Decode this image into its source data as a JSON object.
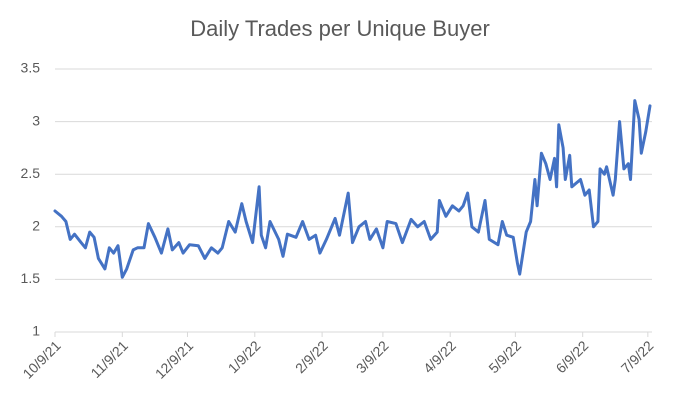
{
  "chart_data": {
    "type": "line",
    "title": "Daily Trades per Unique Buyer",
    "color": "#4472c4",
    "x": [
      "10/9/21",
      "10/12/21",
      "10/14/21",
      "10/16/21",
      "10/18/21",
      "10/21/21",
      "10/23/21",
      "10/25/21",
      "10/27/21",
      "10/29/21",
      "11/1/21",
      "11/3/21",
      "11/5/21",
      "11/7/21",
      "11/9/21",
      "11/11/21",
      "11/14/21",
      "11/16/21",
      "11/19/21",
      "11/21/21",
      "11/24/21",
      "11/27/21",
      "11/30/21",
      "12/2/21",
      "12/5/21",
      "12/7/21",
      "12/10/21",
      "12/14/21",
      "12/17/21",
      "12/20/21",
      "12/23/21",
      "12/25/21",
      "12/28/21",
      "12/31/21",
      "1/3/22",
      "1/5/22",
      "1/8/22",
      "1/11/22",
      "1/12/22",
      "1/14/22",
      "1/16/22",
      "1/20/22",
      "1/22/22",
      "1/24/22",
      "1/28/22",
      "1/31/22",
      "2/3/22",
      "2/6/22",
      "2/8/22",
      "2/11/22",
      "2/15/22",
      "2/17/22",
      "2/21/22",
      "2/23/22",
      "2/26/22",
      "3/1/22",
      "3/3/22",
      "3/6/22",
      "3/9/22",
      "3/11/22",
      "3/15/22",
      "3/18/22",
      "3/22/22",
      "3/25/22",
      "3/28/22",
      "3/31/22",
      "4/3/22",
      "4/4/22",
      "4/7/22",
      "4/10/22",
      "4/13/22",
      "4/15/22",
      "4/17/22",
      "4/19/22",
      "4/22/22",
      "4/25/22",
      "4/27/22",
      "5/1/22",
      "5/3/22",
      "5/5/22",
      "5/8/22",
      "5/10/22",
      "5/11/22",
      "5/14/22",
      "5/16/22",
      "5/18/22",
      "5/19/22",
      "5/21/22",
      "5/23/22",
      "5/25/22",
      "5/27/22",
      "5/28/22",
      "5/29/22",
      "5/31/22",
      "6/1/22",
      "6/3/22",
      "6/4/22",
      "6/8/22",
      "6/10/22",
      "6/12/22",
      "6/14/22",
      "6/16/22",
      "6/17/22",
      "6/19/22",
      "6/20/22",
      "6/23/22",
      "6/24/22",
      "6/26/22",
      "6/28/22",
      "6/30/22",
      "7/1/22",
      "7/3/22",
      "7/5/22",
      "7/6/22",
      "7/8/22",
      "7/10/22"
    ],
    "values": [
      2.15,
      2.1,
      2.05,
      1.88,
      1.93,
      1.85,
      1.8,
      1.95,
      1.9,
      1.7,
      1.6,
      1.8,
      1.75,
      1.82,
      1.52,
      1.6,
      1.78,
      1.8,
      1.8,
      2.03,
      1.9,
      1.75,
      1.98,
      1.78,
      1.85,
      1.75,
      1.83,
      1.82,
      1.7,
      1.8,
      1.75,
      1.8,
      2.05,
      1.95,
      2.22,
      2.05,
      1.85,
      2.38,
      1.92,
      1.8,
      2.05,
      1.88,
      1.72,
      1.93,
      1.9,
      2.05,
      1.88,
      1.92,
      1.75,
      1.88,
      2.08,
      1.92,
      2.32,
      1.85,
      2.0,
      2.05,
      1.88,
      1.98,
      1.8,
      2.05,
      2.03,
      1.85,
      2.07,
      2.0,
      2.05,
      1.88,
      1.95,
      2.25,
      2.1,
      2.2,
      2.15,
      2.2,
      2.32,
      2.0,
      1.95,
      2.25,
      1.88,
      1.83,
      2.05,
      1.92,
      1.9,
      1.65,
      1.55,
      1.95,
      2.05,
      2.45,
      2.2,
      2.7,
      2.6,
      2.45,
      2.65,
      2.38,
      2.97,
      2.75,
      2.45,
      2.68,
      2.38,
      2.45,
      2.3,
      2.35,
      2.0,
      2.05,
      2.55,
      2.5,
      2.57,
      2.3,
      2.45,
      3.0,
      2.55,
      2.6,
      2.45,
      3.2,
      3.02,
      2.7,
      2.9,
      3.15
    ],
    "xlim": [
      "10/9/21",
      "7/10/22"
    ],
    "xticks": [
      "10/9/21",
      "11/9/21",
      "12/9/21",
      "1/9/22",
      "2/9/22",
      "3/9/22",
      "4/9/22",
      "5/9/22",
      "6/9/22",
      "7/9/22"
    ],
    "ylim": [
      1,
      3.5
    ],
    "yticks": [
      1,
      1.5,
      2,
      2.5,
      3,
      3.5
    ],
    "grid": true
  }
}
